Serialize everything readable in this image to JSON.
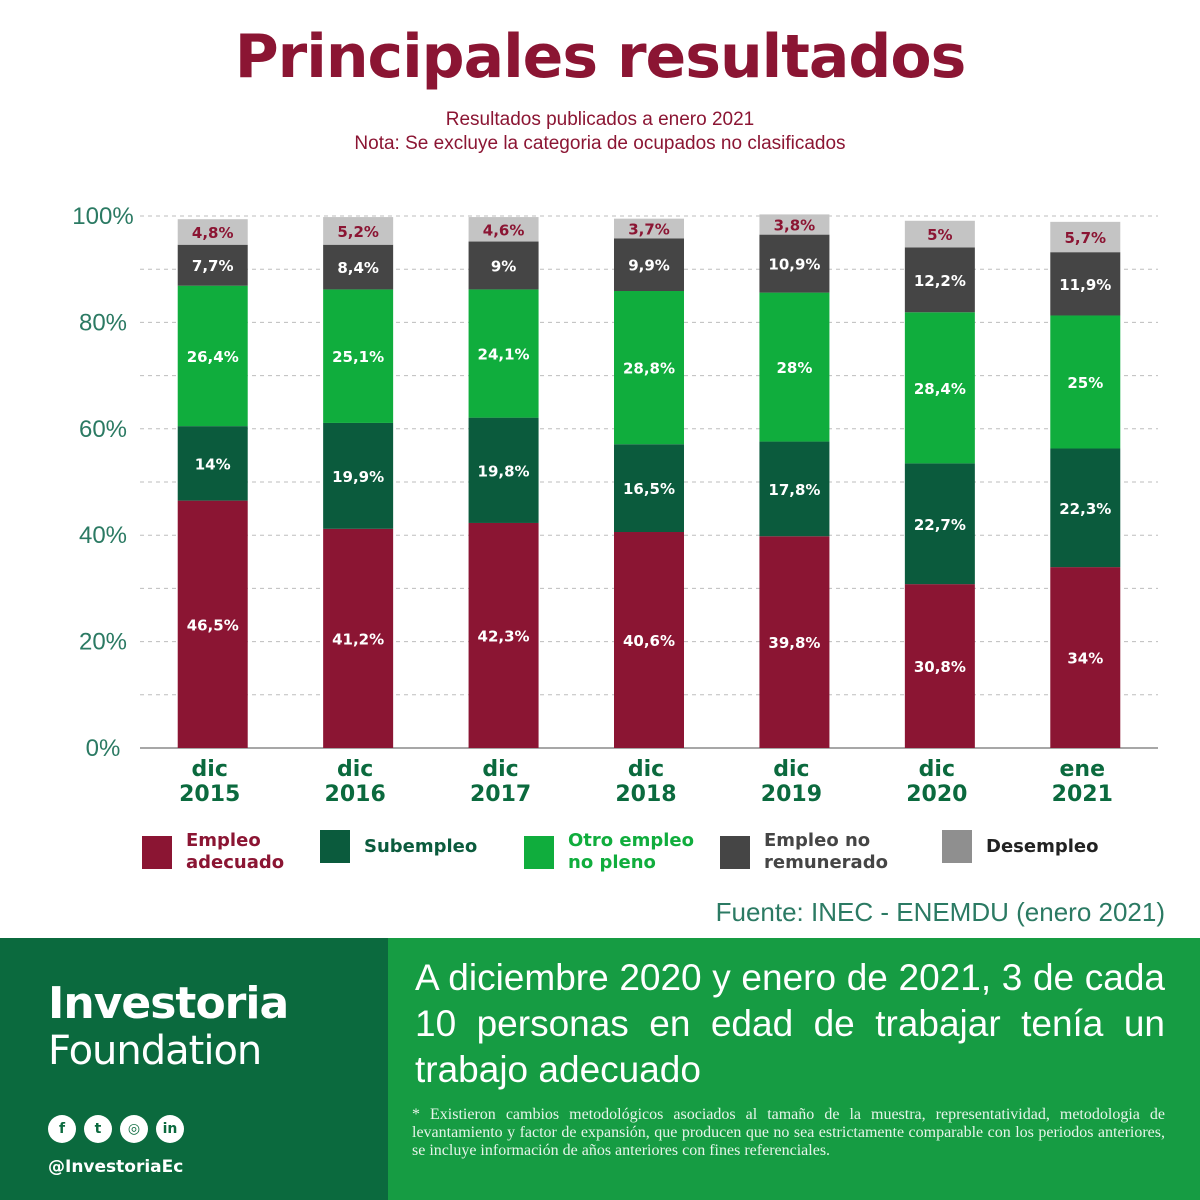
{
  "header": {
    "title": "Principales resultados",
    "subtitle_line1": "Resultados publicados a  enero 2021",
    "subtitle_line2": "Nota: Se excluye la categoria de ocupados no clasificados"
  },
  "chart_data": {
    "type": "bar",
    "stacked": true,
    "categories": [
      "dic 2015",
      "dic 2016",
      "dic 2017",
      "dic 2018",
      "dic 2019",
      "dic 2020",
      "ene 2021"
    ],
    "category_lines": [
      [
        "dic",
        "2015"
      ],
      [
        "dic",
        "2016"
      ],
      [
        "dic",
        "2017"
      ],
      [
        "dic",
        "2018"
      ],
      [
        "dic",
        "2019"
      ],
      [
        "dic",
        "2020"
      ],
      [
        "ene",
        "2021"
      ]
    ],
    "y_ticks": [
      "0%",
      "20%",
      "40%",
      "60%",
      "80%",
      "100%"
    ],
    "ylim": [
      0,
      100
    ],
    "grid": true,
    "legend_position": "bottom",
    "series": [
      {
        "name": "Empleo adecuado",
        "color": "#8b1533",
        "text_color": "#ffffff",
        "values": [
          46.5,
          41.2,
          42.3,
          40.6,
          39.8,
          30.8,
          34
        ],
        "labels": [
          "46,5%",
          "41,2%",
          "42,3%",
          "40,6%",
          "39,8%",
          "30,8%",
          "34%"
        ]
      },
      {
        "name": "Subempleo",
        "color": "#0b5b3d",
        "text_color": "#ffffff",
        "values": [
          14,
          19.9,
          19.8,
          16.5,
          17.8,
          22.7,
          22.3
        ],
        "labels": [
          "14%",
          "19,9%",
          "19,8%",
          "16,5%",
          "17,8%",
          "22,7%",
          "22,3%"
        ]
      },
      {
        "name": "Otro empleo no pleno",
        "color": "#10ad3d",
        "text_color": "#ffffff",
        "values": [
          26.4,
          25.1,
          24.1,
          28.8,
          28,
          28.4,
          25
        ],
        "labels": [
          "26,4%",
          "25,1%",
          "24,1%",
          "28,8%",
          "28%",
          "28,4%",
          "25%"
        ]
      },
      {
        "name": "Empleo no remunerado",
        "color": "#454545",
        "text_color": "#ffffff",
        "values": [
          7.7,
          8.4,
          9,
          9.9,
          10.9,
          12.2,
          11.9
        ],
        "labels": [
          "7,7%",
          "8,4%",
          "9%",
          "9,9%",
          "10,9%",
          "12,2%",
          "11,9%"
        ]
      },
      {
        "name": "Desempleo",
        "color": "#c4c4c4",
        "text_color": "#8b1533",
        "values": [
          4.8,
          5.2,
          4.6,
          3.7,
          3.8,
          5,
          5.7
        ],
        "labels": [
          "4,8%",
          "5,2%",
          "4,6%",
          "3,7%",
          "3,8%",
          "5%",
          "5,7%"
        ]
      }
    ]
  },
  "legend": [
    {
      "label": "Empleo\nadecuado",
      "color": "#8b1533",
      "text_color": "#8b1533"
    },
    {
      "label": "Subempleo",
      "color": "#0b5b3d",
      "text_color": "#0b5b3d"
    },
    {
      "label": "Otro empleo\nno pleno",
      "color": "#10ad3d",
      "text_color": "#10ad3d"
    },
    {
      "label": "Empleo no\nremunerado",
      "color": "#454545",
      "text_color": "#454545"
    },
    {
      "label": "Desempleo",
      "color": "#8f8f8f",
      "text_color": "#222222"
    }
  ],
  "source": "Fuente: INEC - ENEMDU (enero 2021)",
  "footer": {
    "brand_top": "Investoria",
    "brand_bottom": "Foundation",
    "social_icons": [
      {
        "name": "facebook-icon",
        "glyph": "f"
      },
      {
        "name": "twitter-icon",
        "glyph": "t"
      },
      {
        "name": "instagram-icon",
        "glyph": "◎"
      },
      {
        "name": "linkedin-icon",
        "glyph": "in"
      }
    ],
    "handle": "@InvestoriaEc",
    "headline": "A diciembre 2020 y enero de 2021, 3 de cada 10 personas en edad de trabajar tenía un trabajo adecuado",
    "footnote": "*  Existieron cambios metodológicos asociados al tamaño de la muestra, representatividad, metodologia de levantamiento y factor de expansión, que producen que no sea estrictamente comparable con los periodos anteriores, se incluye información de años anteriores con fines referenciales."
  },
  "colors": {
    "title": "#8b1533",
    "axis_text": "#2b7a63",
    "footer_dark": "#0b6a3e",
    "footer_light": "#169c43"
  }
}
